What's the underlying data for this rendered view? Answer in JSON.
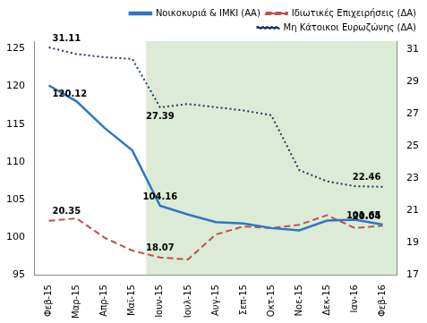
{
  "chart_data": {
    "type": "line",
    "categories": [
      "Φεβ-15",
      "Μαρ-15",
      "Απρ-15",
      "Μαϊ-15",
      "Ιουν-15",
      "Ιουλ-15",
      "Αυγ-15",
      "Σεπ-15",
      "Οκτ-15",
      "Νοε-15",
      "Δεκ-15",
      "Ιαν-16",
      "Φεβ-16"
    ],
    "series": [
      {
        "name": "Νοικοκυριά & ΙΜΚΙ (ΑΑ)",
        "color": "#2e75c8",
        "line_style": "solid",
        "values": [
          120.12,
          118.0,
          114.5,
          111.5,
          104.16,
          103.0,
          102.0,
          101.8,
          101.2,
          100.9,
          102.2,
          102.3,
          101.65
        ],
        "value_labels": [
          "120.12",
          null,
          null,
          null,
          "104.16",
          null,
          null,
          null,
          null,
          null,
          null,
          null,
          "101.65"
        ]
      },
      {
        "name": "Ιδιωτικές Επιχειρήσεις (ΔΑ)",
        "color": "#c0504d",
        "line_style": "dashed",
        "axis": "y2",
        "values": [
          20.35,
          20.5,
          19.3,
          18.5,
          18.07,
          17.95,
          19.5,
          20.0,
          19.9,
          20.1,
          20.7,
          19.9,
          20.04
        ],
        "value_labels": [
          "20.35",
          null,
          null,
          null,
          "18.07",
          null,
          null,
          null,
          null,
          null,
          null,
          null,
          "20.04"
        ]
      },
      {
        "name": "Μη Κάτοικοι Ευρωζώνης (ΔΑ)",
        "color": "#1f3864",
        "line_style": "dotted",
        "axis": "y2",
        "values": [
          31.11,
          30.7,
          30.5,
          30.4,
          27.39,
          27.6,
          27.4,
          27.2,
          26.9,
          23.5,
          22.8,
          22.5,
          22.46
        ],
        "value_labels": [
          "31.11",
          null,
          null,
          null,
          "27.39",
          null,
          null,
          null,
          null,
          null,
          null,
          null,
          "22.46"
        ]
      }
    ],
    "ylim": [
      95,
      126
    ],
    "yticks": [
      95,
      100,
      105,
      110,
      115,
      120,
      125
    ],
    "y2lim": [
      17,
      31.5
    ],
    "y2ticks": [
      17,
      19,
      21,
      23,
      25,
      27,
      29,
      31
    ],
    "shaded_range": {
      "from": "Ιουν-15",
      "to": "Φεβ-16"
    },
    "legend": "top",
    "grid": false
  }
}
